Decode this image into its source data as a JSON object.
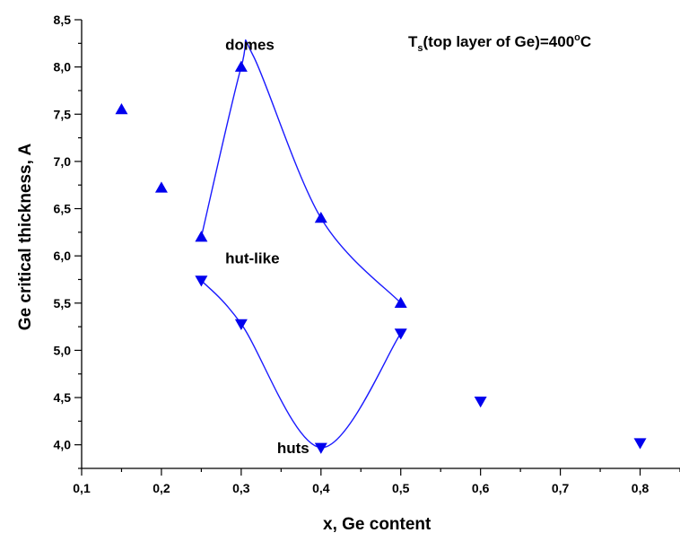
{
  "chart_data": {
    "type": "scatter",
    "xlabel": "x, Ge content",
    "ylabel": "Ge critical thickness, A",
    "xlim": [
      0.1,
      0.85
    ],
    "ylim": [
      3.75,
      8.5
    ],
    "x_ticks": [
      "0,1",
      "0,2",
      "0,3",
      "0,4",
      "0,5",
      "0,6",
      "0,7",
      "0,8"
    ],
    "y_ticks": [
      "4,0",
      "4,5",
      "5,0",
      "5,5",
      "6,0",
      "6,5",
      "7,0",
      "7,5",
      "8,0",
      "8,5"
    ],
    "grid": false,
    "series": [
      {
        "marker": "triangle-up",
        "color": "#0000ee",
        "points": [
          {
            "x": 0.15,
            "y": 7.55
          },
          {
            "x": 0.2,
            "y": 6.72
          },
          {
            "x": 0.25,
            "y": 6.2
          },
          {
            "x": 0.3,
            "y": 8.0
          },
          {
            "x": 0.4,
            "y": 6.4
          },
          {
            "x": 0.5,
            "y": 5.5
          }
        ]
      },
      {
        "marker": "triangle-down",
        "color": "#0000ee",
        "points": [
          {
            "x": 0.25,
            "y": 5.74
          },
          {
            "x": 0.3,
            "y": 5.28
          },
          {
            "x": 0.4,
            "y": 3.97
          },
          {
            "x": 0.5,
            "y": 5.18
          },
          {
            "x": 0.6,
            "y": 4.46
          },
          {
            "x": 0.8,
            "y": 4.02
          }
        ]
      }
    ],
    "curves": [
      {
        "color": "#1a1aff",
        "points": [
          [
            0.25,
            6.2
          ],
          [
            0.3,
            8.0
          ],
          [
            0.315,
            8.12
          ],
          [
            0.4,
            6.4
          ],
          [
            0.5,
            5.5
          ]
        ]
      },
      {
        "color": "#1a1aff",
        "points": [
          [
            0.25,
            5.74
          ],
          [
            0.3,
            5.28
          ],
          [
            0.4,
            3.97
          ],
          [
            0.5,
            5.18
          ]
        ]
      }
    ],
    "annotations": [
      {
        "text": "domes",
        "x": 0.28,
        "y": 8.24
      },
      {
        "text": "hut-like",
        "x": 0.28,
        "y": 5.98
      },
      {
        "text": "huts",
        "x": 0.345,
        "y": 3.97
      }
    ],
    "title_parts": {
      "main": "T",
      "sub": "s",
      "mid": "(top layer of Ge)=400",
      "sup": "o",
      "end": "C"
    },
    "title_position": "top-right"
  }
}
